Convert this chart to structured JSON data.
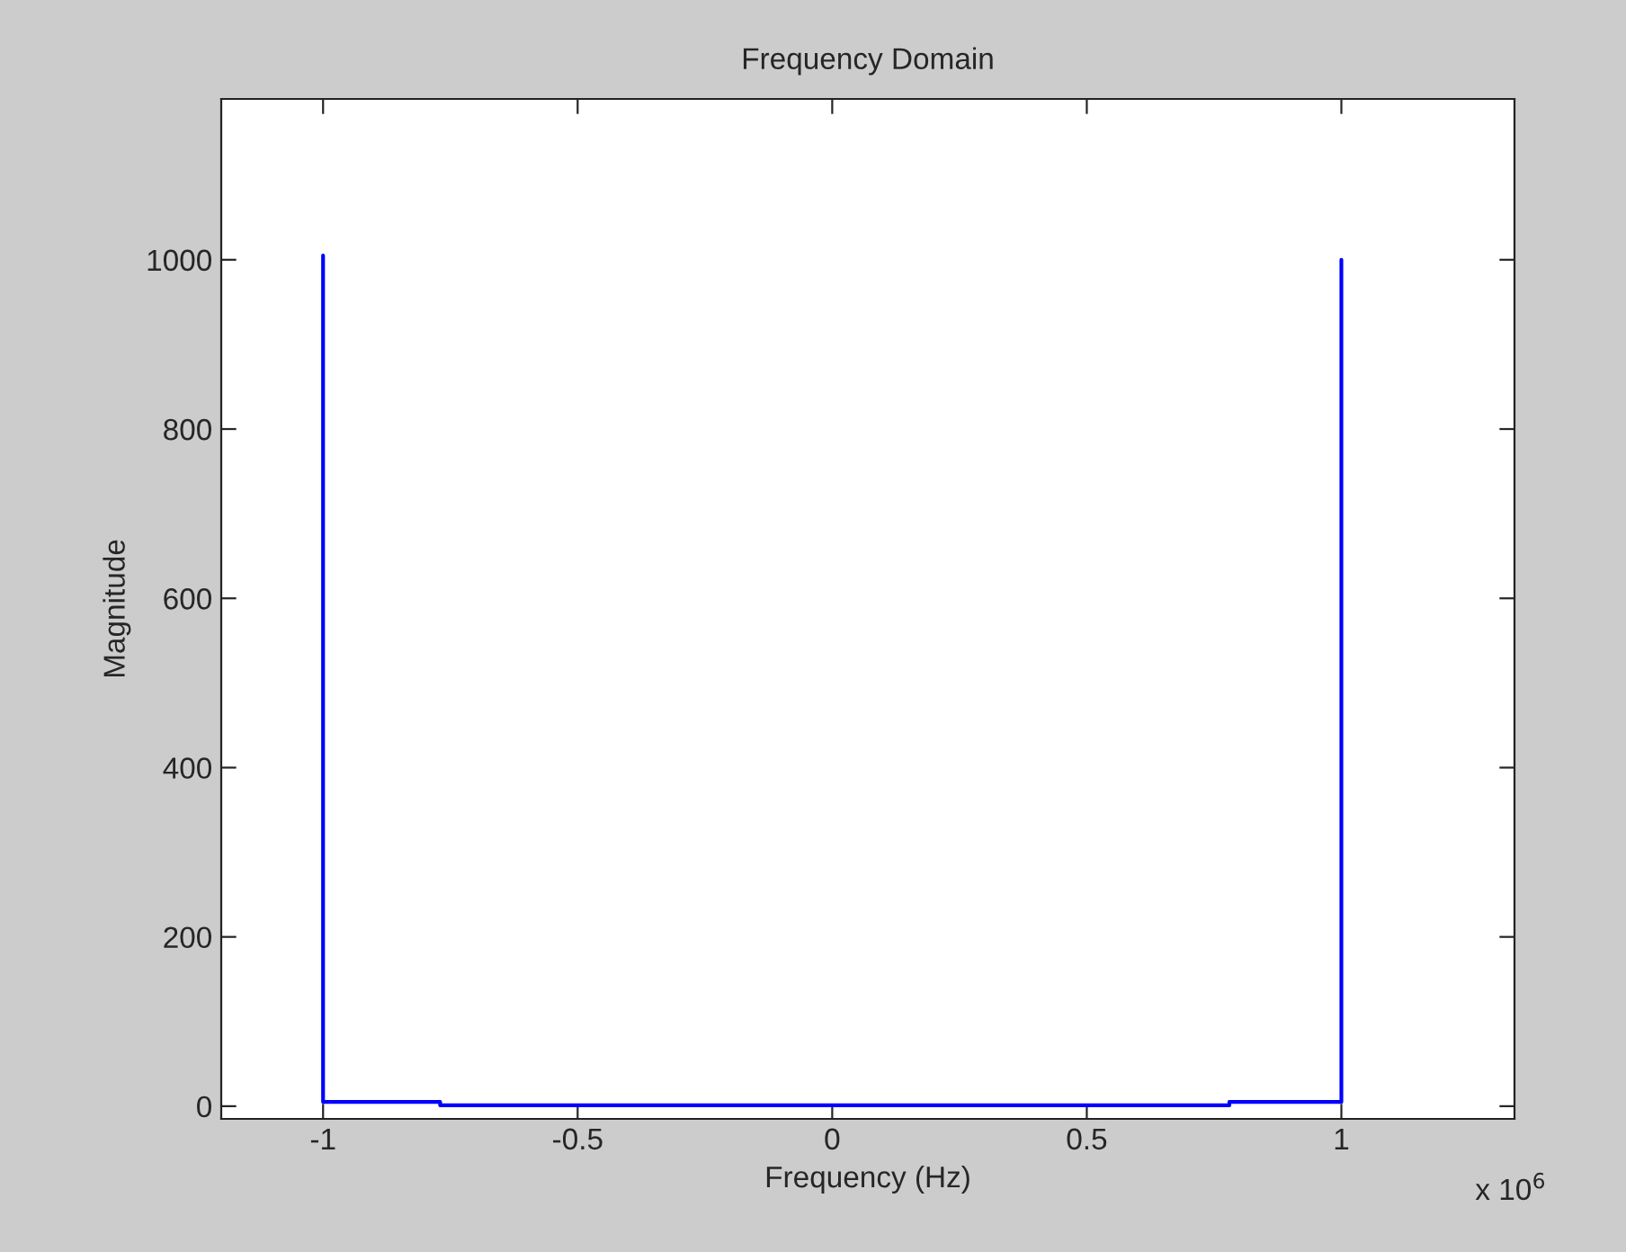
{
  "chart_data": {
    "type": "line",
    "title": "Frequency Domain",
    "xlabel": "Frequency (Hz)",
    "ylabel": "Magnitude",
    "x": [
      -1.0,
      -1.0,
      -1.0,
      -0.77,
      -0.77,
      0.78,
      0.78,
      1.0,
      1.0
    ],
    "series": [
      {
        "color": "#0000ff",
        "values": [
          500,
          1005,
          5,
          5,
          1,
          1,
          5,
          5,
          1000
        ]
      }
    ],
    "xlim": [
      -1.2,
      1.34
    ],
    "xticks": [
      -1,
      -0.5,
      0,
      0.5,
      1
    ],
    "ylim": [
      -15,
      1190
    ],
    "yticks": [
      0,
      200,
      400,
      600,
      800,
      1000
    ],
    "annotations": [
      "x 10$^{6}$"
    ],
    "grid": false,
    "legend": false
  }
}
